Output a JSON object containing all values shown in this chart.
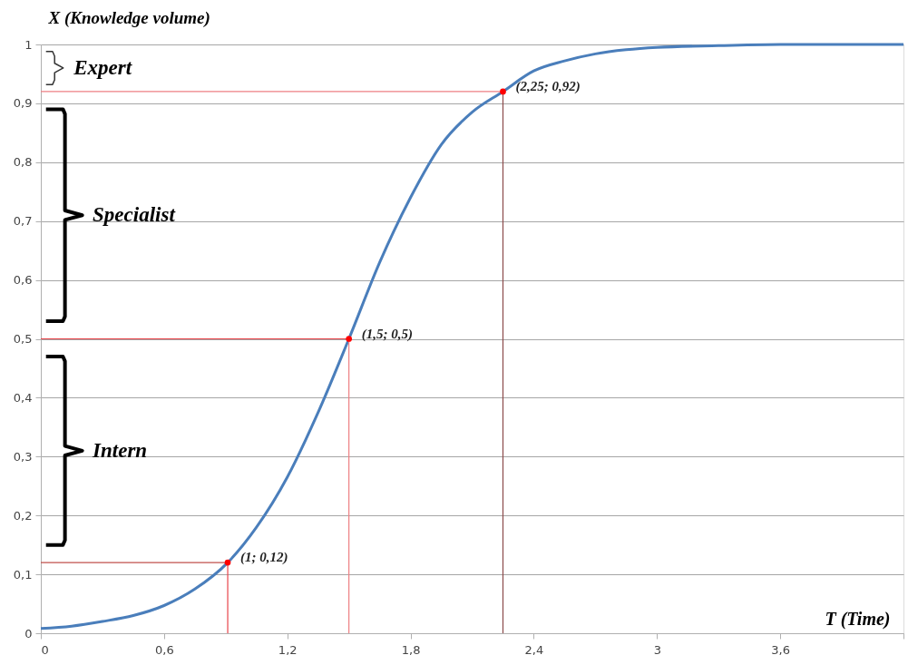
{
  "chart_data": {
    "type": "line",
    "xlabel": "T (Time)",
    "ylabel": "X (Knowledge volume)",
    "series": [
      {
        "color": "#4a7ebb",
        "x": [
          0,
          0.15,
          0.3,
          0.45,
          0.6,
          0.75,
          0.91,
          1.05,
          1.2,
          1.35,
          1.5,
          1.65,
          1.8,
          1.95,
          2.1,
          2.25,
          2.4,
          2.55,
          2.7,
          2.85,
          3.0,
          3.3,
          3.6,
          4.2
        ],
        "values": [
          0.008,
          0.012,
          0.02,
          0.03,
          0.047,
          0.075,
          0.12,
          0.18,
          0.265,
          0.375,
          0.5,
          0.63,
          0.74,
          0.83,
          0.885,
          0.92,
          0.955,
          0.972,
          0.984,
          0.991,
          0.995,
          0.998,
          1.0,
          1.0
        ]
      }
    ],
    "xlim": [
      0,
      4.2
    ],
    "xticks": [
      0,
      {
        "value": 0.6,
        "label": "0,6"
      },
      {
        "value": 1.2,
        "label": "1,2"
      },
      {
        "value": 1.8,
        "label": "1,8"
      },
      {
        "value": 2.4,
        "label": "2,4"
      },
      3,
      {
        "value": 3.6,
        "label": "3,6"
      },
      {
        "value": 4.2,
        "label": null
      }
    ],
    "ylim": [
      0,
      1
    ],
    "yticks": [
      0,
      {
        "value": 0.1,
        "label": "0,1"
      },
      {
        "value": 0.2,
        "label": "0,2"
      },
      {
        "value": 0.3,
        "label": "0,3"
      },
      {
        "value": 0.4,
        "label": "0,4"
      },
      {
        "value": 0.5,
        "label": "0,5"
      },
      {
        "value": 0.6,
        "label": "0,6"
      },
      {
        "value": 0.7,
        "label": "0,7"
      },
      {
        "value": 0.8,
        "label": "0,8"
      },
      {
        "value": 0.9,
        "label": "0,9"
      },
      1
    ],
    "grid": "y",
    "line_style": "solid",
    "marker": "none",
    "ref_lines": [
      {
        "axis": "y",
        "value": 0.12,
        "color": "#c0504d"
      },
      {
        "axis": "x",
        "value": 0.91,
        "color": "#e8434a"
      },
      {
        "axis": "y",
        "value": 0.5,
        "color": "#e8434a"
      },
      {
        "axis": "x",
        "value": 1.5,
        "color": "#ee7f83"
      },
      {
        "axis": "y",
        "value": 0.92,
        "color": "#ee7f83"
      },
      {
        "axis": "x",
        "value": 2.25,
        "color": "#8b4a4a"
      }
    ],
    "annotations": [
      "Expert",
      "Specialist",
      "Intern",
      {
        "text": "(1; 0,12)",
        "x": 0.91,
        "y": 0.12
      },
      {
        "text": "(1,5; 0,5)",
        "x": 1.5,
        "y": 0.5
      },
      {
        "text": "(2,25; 0,92)",
        "x": 2.25,
        "y": 0.92
      }
    ]
  }
}
